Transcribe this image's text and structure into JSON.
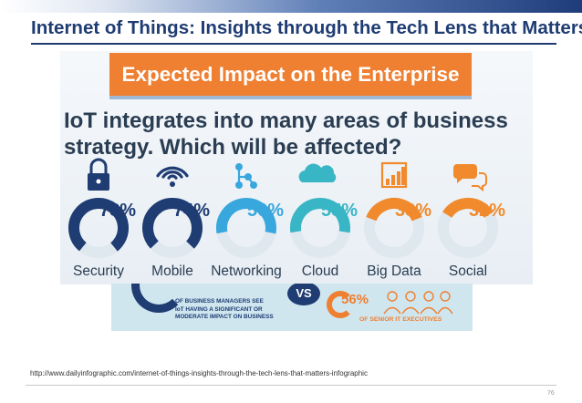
{
  "slide": {
    "title": "Internet of Things: Insights through the Tech Lens that Matters",
    "source_url": "http://www.dailyinfographic.com/internet-of-things-insights-through-the-tech-lens-that-matters-infographic",
    "page_number": "76"
  },
  "infographic": {
    "banner": "Expected Impact on the Enterprise",
    "question_line1": "IoT integrates into many areas of business",
    "question_line2": "strategy. Which will be affected?",
    "bottom": {
      "managers_line1": "OF BUSINESS MANAGERS SEE",
      "managers_line2": "IoT HAVING A SIGNIFICANT OR",
      "managers_line3": "MODERATE IMPACT ON BUSINESS",
      "vs": "VS",
      "exec_pct": "56%",
      "exec_label": "OF SENIOR IT EXECUTIVES"
    }
  },
  "chart_data": {
    "type": "pie",
    "title": "IoT integrates into many areas of business strategy. Which will be affected?",
    "categories": [
      "Security",
      "Mobile",
      "Networking",
      "Cloud",
      "Big Data",
      "Social"
    ],
    "values": [
      78,
      74,
      56,
      55,
      38,
      32
    ],
    "unit": "%",
    "icons": [
      "lock-icon",
      "wifi-icon",
      "network-icon",
      "cloud-icon",
      "bar-chart-icon",
      "chat-bubbles-icon"
    ],
    "colors": {
      "dark_blue": "#1f3c73",
      "light_blue": "#38a7dd",
      "cyan": "#38b6c5",
      "orange": "#f08a2c",
      "track": "#dfe7ef"
    },
    "ring_colors": [
      "#1f3c73",
      "#1f3c73",
      "#38a7dd",
      "#38b6c5",
      "#f08a2c",
      "#f08a2c"
    ]
  }
}
